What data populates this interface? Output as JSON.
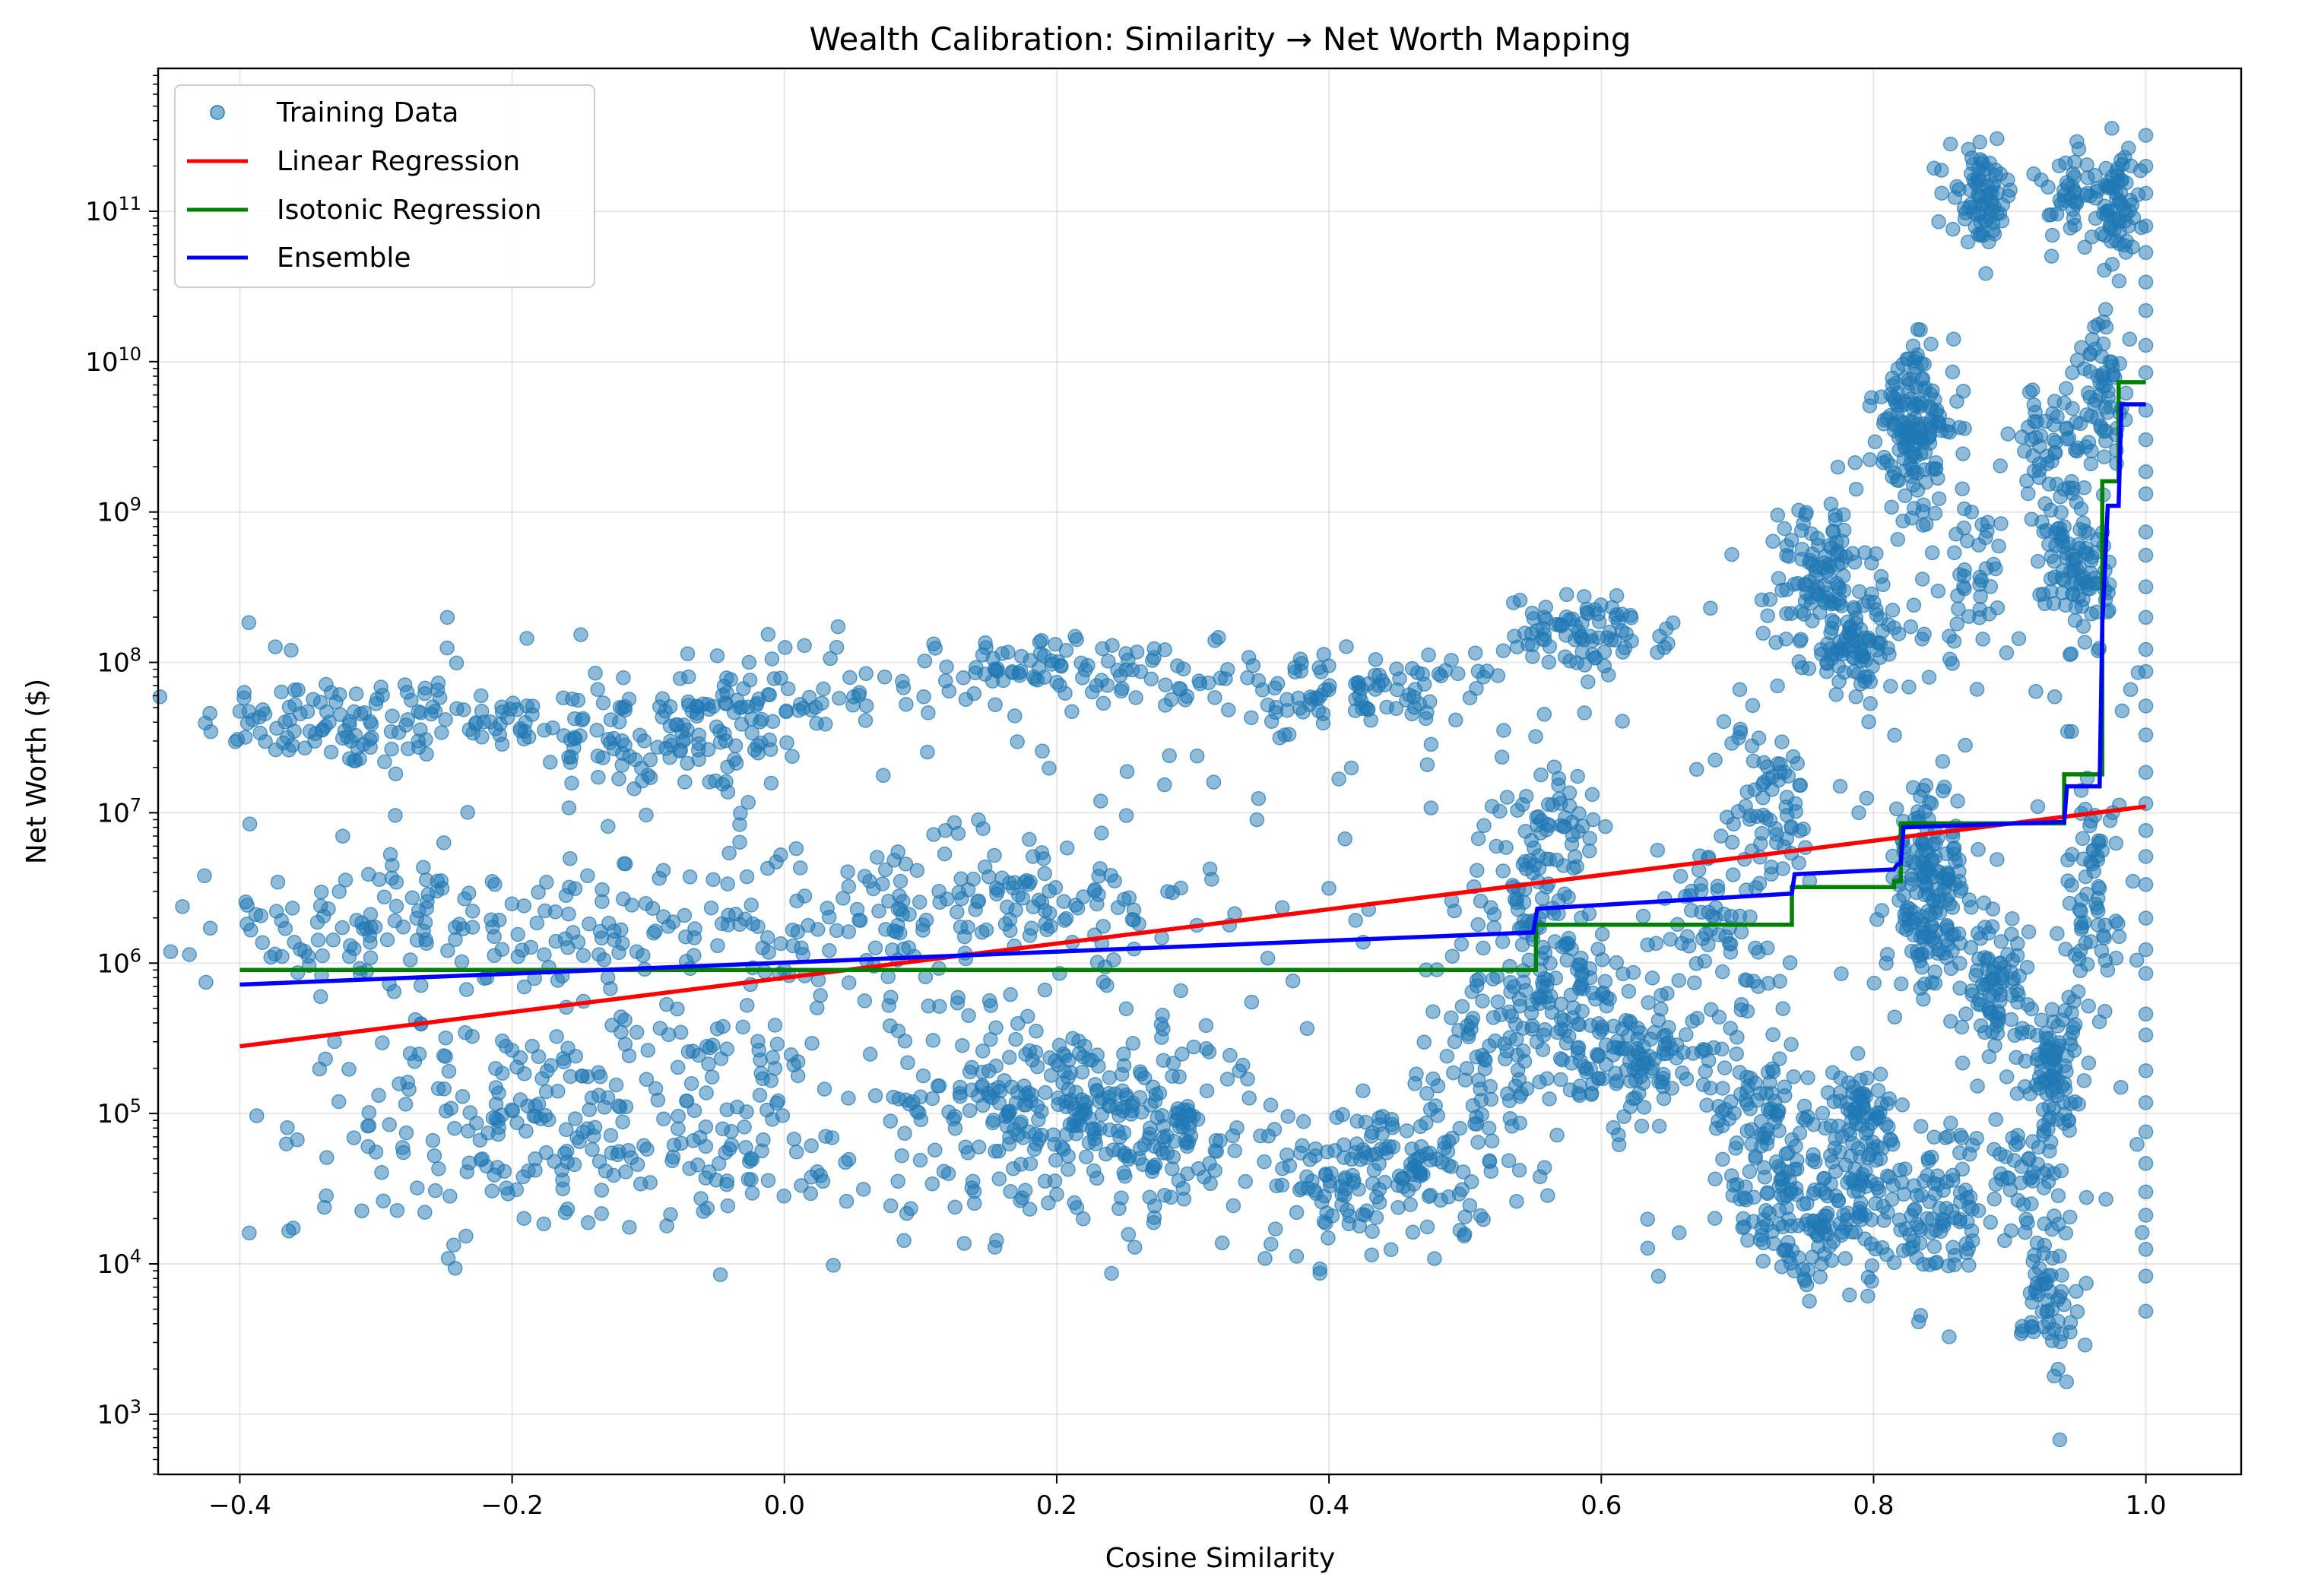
{
  "chart_data": {
    "type": "scatter",
    "title": "Wealth Calibration: Similarity → Net Worth Mapping",
    "xlabel": "Cosine Similarity",
    "ylabel": "Net Worth ($)",
    "xlim": [
      -0.46,
      1.07
    ],
    "ylim_log10": [
      2.6,
      11.95
    ],
    "y_scale": "log",
    "x_ticks": [
      -0.4,
      -0.2,
      0.0,
      0.2,
      0.4,
      0.6,
      0.8,
      1.0
    ],
    "x_tick_labels": [
      "−0.4",
      "−0.2",
      "0.0",
      "0.2",
      "0.4",
      "0.6",
      "0.8",
      "1.0"
    ],
    "y_ticks_log10": [
      3,
      4,
      5,
      6,
      7,
      8,
      9,
      10,
      11
    ],
    "y_tick_base": "10",
    "y_tick_exponents": [
      "3",
      "4",
      "5",
      "6",
      "7",
      "8",
      "9",
      "10",
      "11"
    ],
    "grid": true,
    "legend_position": "top-left",
    "colors": {
      "training": "#1f77b4",
      "linear": "#ff0000",
      "isotonic": "#008000",
      "ensemble": "#0000ff"
    },
    "series": [
      {
        "name": "Training Data",
        "kind": "scatter",
        "clusters": [
          {
            "x": -0.33,
            "y_log": 7.6,
            "sx": 0.05,
            "sy": 0.15,
            "n": 90
          },
          {
            "x": -0.22,
            "y_log": 7.6,
            "sx": 0.04,
            "sy": 0.12,
            "n": 40
          },
          {
            "x": -0.08,
            "y_log": 7.45,
            "sx": 0.05,
            "sy": 0.18,
            "n": 90
          },
          {
            "x": -0.03,
            "y_log": 7.75,
            "sx": 0.05,
            "sy": 0.15,
            "n": 70
          },
          {
            "x": 0.2,
            "y_log": 7.95,
            "sx": 0.06,
            "sy": 0.1,
            "n": 90
          },
          {
            "x": 0.42,
            "y_log": 7.8,
            "sx": 0.06,
            "sy": 0.12,
            "n": 100
          },
          {
            "x": 0.59,
            "y_log": 8.2,
            "sx": 0.03,
            "sy": 0.12,
            "n": 80
          },
          {
            "x": -0.3,
            "y_log": 6.25,
            "sx": 0.06,
            "sy": 0.2,
            "n": 90
          },
          {
            "x": -0.15,
            "y_log": 6.1,
            "sx": 0.06,
            "sy": 0.3,
            "n": 70
          },
          {
            "x": 0.05,
            "y_log": 6.2,
            "sx": 0.08,
            "sy": 0.3,
            "n": 110
          },
          {
            "x": 0.18,
            "y_log": 6.5,
            "sx": 0.06,
            "sy": 0.2,
            "n": 80
          },
          {
            "x": -0.2,
            "y_log": 4.9,
            "sx": 0.06,
            "sy": 0.35,
            "n": 130
          },
          {
            "x": -0.05,
            "y_log": 5.0,
            "sx": 0.06,
            "sy": 0.35,
            "n": 110
          },
          {
            "x": 0.18,
            "y_log": 5.1,
            "sx": 0.05,
            "sy": 0.3,
            "n": 190
          },
          {
            "x": 0.27,
            "y_log": 4.9,
            "sx": 0.04,
            "sy": 0.3,
            "n": 140
          },
          {
            "x": 0.44,
            "y_log": 4.6,
            "sx": 0.04,
            "sy": 0.25,
            "n": 150
          },
          {
            "x": 0.52,
            "y_log": 5.4,
            "sx": 0.03,
            "sy": 0.4,
            "n": 80
          },
          {
            "x": 0.55,
            "y_log": 6.5,
            "sx": 0.02,
            "sy": 0.35,
            "n": 90
          },
          {
            "x": 0.57,
            "y_log": 7.0,
            "sx": 0.015,
            "sy": 0.15,
            "n": 30
          },
          {
            "x": 0.57,
            "y_log": 5.7,
            "sx": 0.03,
            "sy": 0.3,
            "n": 90
          },
          {
            "x": 0.64,
            "y_log": 5.35,
            "sx": 0.03,
            "sy": 0.15,
            "n": 100
          },
          {
            "x": 0.68,
            "y_log": 6.2,
            "sx": 0.03,
            "sy": 0.3,
            "n": 60
          },
          {
            "x": 0.72,
            "y_log": 7.0,
            "sx": 0.02,
            "sy": 0.3,
            "n": 70
          },
          {
            "x": 0.73,
            "y_log": 4.4,
            "sx": 0.02,
            "sy": 0.25,
            "n": 70
          },
          {
            "x": 0.72,
            "y_log": 5.0,
            "sx": 0.02,
            "sy": 0.2,
            "n": 60
          },
          {
            "x": 0.76,
            "y_log": 8.6,
            "sx": 0.02,
            "sy": 0.25,
            "n": 110
          },
          {
            "x": 0.79,
            "y_log": 8.1,
            "sx": 0.02,
            "sy": 0.15,
            "n": 90
          },
          {
            "x": 0.78,
            "y_log": 4.4,
            "sx": 0.03,
            "sy": 0.25,
            "n": 130
          },
          {
            "x": 0.79,
            "y_log": 5.0,
            "sx": 0.02,
            "sy": 0.15,
            "n": 60
          },
          {
            "x": 0.83,
            "y_log": 9.7,
            "sx": 0.015,
            "sy": 0.2,
            "n": 90
          },
          {
            "x": 0.83,
            "y_log": 9.35,
            "sx": 0.015,
            "sy": 0.2,
            "n": 70
          },
          {
            "x": 0.84,
            "y_log": 6.6,
            "sx": 0.015,
            "sy": 0.3,
            "n": 110
          },
          {
            "x": 0.84,
            "y_log": 6.2,
            "sx": 0.015,
            "sy": 0.2,
            "n": 60
          },
          {
            "x": 0.85,
            "y_log": 4.3,
            "sx": 0.015,
            "sy": 0.3,
            "n": 70
          },
          {
            "x": 0.88,
            "y_log": 11.1,
            "sx": 0.012,
            "sy": 0.15,
            "n": 80
          },
          {
            "x": 0.87,
            "y_log": 8.6,
            "sx": 0.015,
            "sy": 0.3,
            "n": 40
          },
          {
            "x": 0.89,
            "y_log": 5.8,
            "sx": 0.01,
            "sy": 0.2,
            "n": 80
          },
          {
            "x": 0.91,
            "y_log": 4.6,
            "sx": 0.015,
            "sy": 0.2,
            "n": 50
          },
          {
            "x": 0.93,
            "y_log": 9.4,
            "sx": 0.015,
            "sy": 0.3,
            "n": 60
          },
          {
            "x": 0.93,
            "y_log": 5.3,
            "sx": 0.01,
            "sy": 0.2,
            "n": 80
          },
          {
            "x": 0.93,
            "y_log": 3.8,
            "sx": 0.01,
            "sy": 0.3,
            "n": 60
          },
          {
            "x": 0.95,
            "y_log": 11.1,
            "sx": 0.015,
            "sy": 0.15,
            "n": 50
          },
          {
            "x": 0.95,
            "y_log": 8.6,
            "sx": 0.012,
            "sy": 0.3,
            "n": 100
          },
          {
            "x": 0.96,
            "y_log": 6.4,
            "sx": 0.01,
            "sy": 0.4,
            "n": 70
          },
          {
            "x": 0.97,
            "y_log": 9.8,
            "sx": 0.01,
            "sy": 0.25,
            "n": 60
          },
          {
            "x": 0.98,
            "y_log": 11.0,
            "sx": 0.008,
            "sy": 0.2,
            "n": 60
          }
        ],
        "column_x": 1.0,
        "column_y_log_range": [
          3.7,
          11.5
        ]
      },
      {
        "name": "Linear Regression",
        "kind": "line",
        "x": [
          -0.4,
          1.0
        ],
        "y": [
          280000,
          11000000
        ]
      },
      {
        "name": "Isotonic Regression",
        "kind": "step",
        "x": [
          -0.4,
          0.552,
          0.552,
          0.74,
          0.74,
          0.815,
          0.815,
          0.82,
          0.82,
          0.94,
          0.94,
          0.968,
          0.968,
          0.98,
          0.98,
          1.0
        ],
        "y": [
          900000,
          900000,
          1800000,
          1800000,
          3200000,
          3200000,
          3500000,
          3500000,
          8500000,
          8500000,
          18000000,
          18000000,
          1600000000,
          1600000000,
          7300000000,
          7300000000
        ]
      },
      {
        "name": "Ensemble",
        "kind": "line",
        "x": [
          -0.4,
          0.55,
          0.553,
          0.74,
          0.742,
          0.815,
          0.817,
          0.82,
          0.822,
          0.94,
          0.942,
          0.966,
          0.968,
          0.972,
          0.974,
          0.98,
          0.982,
          1.0
        ],
        "y": [
          720000,
          1600000,
          2300000,
          2900000,
          3900000,
          4200000,
          4500000,
          4600000,
          8000000,
          8700000,
          15000000,
          15000000,
          180000000,
          1100000000,
          1100000000,
          1100000000,
          5200000000,
          5200000000
        ]
      }
    ]
  }
}
